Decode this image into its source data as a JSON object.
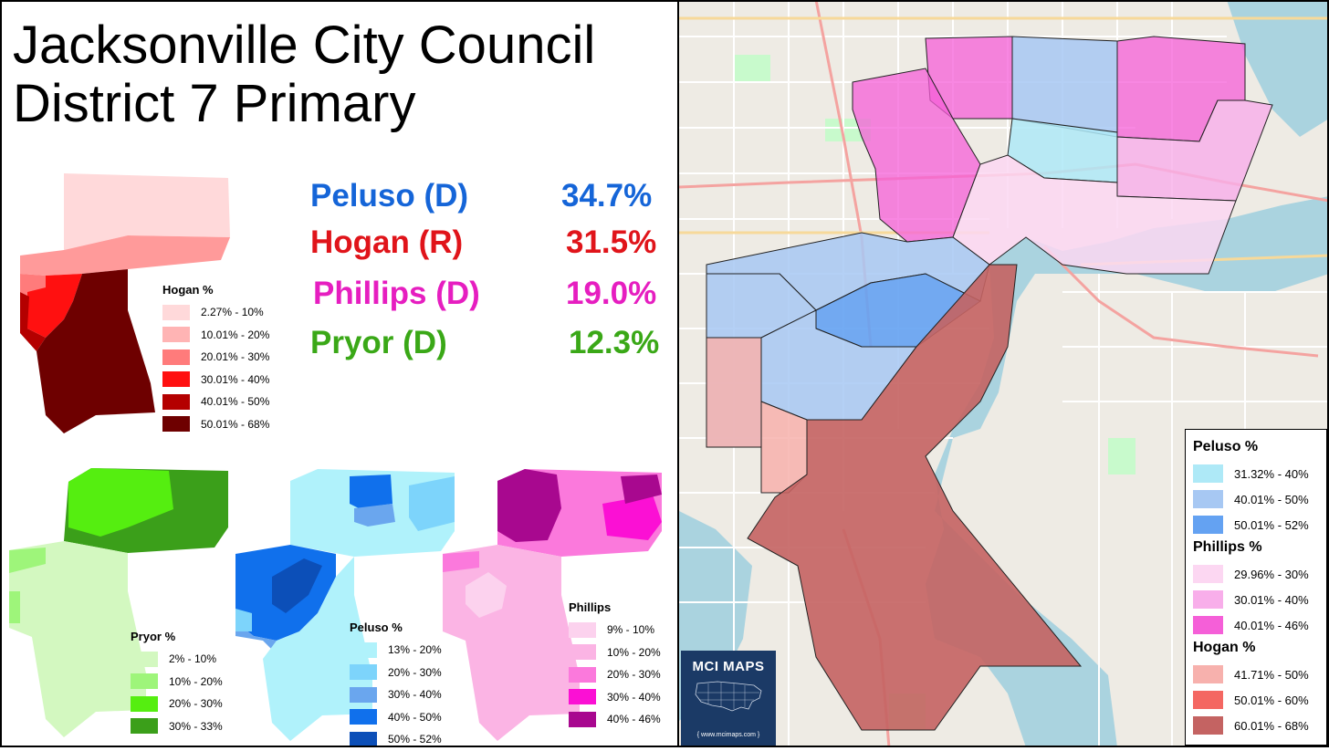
{
  "title": {
    "line1": "Jacksonville City Council",
    "line2": "District 7 Primary"
  },
  "results": [
    {
      "name": "Peluso (D)",
      "pct": "34.7%",
      "color": "#1565d8"
    },
    {
      "name": "Hogan (R)",
      "pct": "31.5%",
      "color": "#e0141a"
    },
    {
      "name": "Phillips (D)",
      "pct": "19.0%",
      "color": "#e61ec0"
    },
    {
      "name": "Pryor (D)",
      "pct": "12.3%",
      "color": "#3aa817"
    }
  ],
  "mini_legends": {
    "hogan": {
      "title": "Hogan %",
      "items": [
        {
          "label": "2.27% - 10%",
          "color": "#ffd9da"
        },
        {
          "label": "10.01% - 20%",
          "color": "#ffb4b4"
        },
        {
          "label": "20.01% - 30%",
          "color": "#ff7b7b"
        },
        {
          "label": "30.01% - 40%",
          "color": "#ff1010"
        },
        {
          "label": "40.01% - 50%",
          "color": "#b40000"
        },
        {
          "label": "50.01% - 68%",
          "color": "#6e0000"
        }
      ]
    },
    "pryor": {
      "title": "Pryor %",
      "items": [
        {
          "label": "2% - 10%",
          "color": "#d3f8c0"
        },
        {
          "label": "10% - 20%",
          "color": "#9ef57a"
        },
        {
          "label": "20% - 30%",
          "color": "#55ee10"
        },
        {
          "label": "30% - 33%",
          "color": "#3b9f1a"
        }
      ]
    },
    "peluso": {
      "title": "Peluso %",
      "items": [
        {
          "label": "13% - 20%",
          "color": "#b0f2fb"
        },
        {
          "label": "20% - 30%",
          "color": "#7dd4fb"
        },
        {
          "label": "30% - 40%",
          "color": "#6aa6ee"
        },
        {
          "label": "40% - 50%",
          "color": "#1070ec"
        },
        {
          "label": "50% - 52%",
          "color": "#0c4fb8"
        }
      ]
    },
    "phillips": {
      "title": "Phillips",
      "items": [
        {
          "label": "9% - 10%",
          "color": "#fcd2ee"
        },
        {
          "label": "10% - 20%",
          "color": "#fbb4e4"
        },
        {
          "label": "20% - 30%",
          "color": "#fb79dc"
        },
        {
          "label": "30% - 40%",
          "color": "#fb10d4"
        },
        {
          "label": "40% - 46%",
          "color": "#a8088f"
        }
      ]
    }
  },
  "big_legend": [
    {
      "title": "Peluso %",
      "items": [
        {
          "label": "31.32% - 40%",
          "color": "#aee9f7"
        },
        {
          "label": "40.01% - 50%",
          "color": "#a7c8f3"
        },
        {
          "label": "50.01% - 52%",
          "color": "#64a2f2"
        }
      ]
    },
    {
      "title": "Phillips %",
      "items": [
        {
          "label": "29.96% - 30%",
          "color": "#fcd7f2"
        },
        {
          "label": "30.01% - 40%",
          "color": "#f8aeea"
        },
        {
          "label": "40.01% - 46%",
          "color": "#f55fd8"
        }
      ]
    },
    {
      "title": "Hogan %",
      "items": [
        {
          "label": "41.71% - 50%",
          "color": "#f7b1ad"
        },
        {
          "label": "50.01% - 60%",
          "color": "#f46762"
        },
        {
          "label": "60.01% - 68%",
          "color": "#c46362"
        }
      ]
    }
  ],
  "logo": {
    "name": "MCI MAPS",
    "url": "{ www.mcimaps.com }"
  }
}
